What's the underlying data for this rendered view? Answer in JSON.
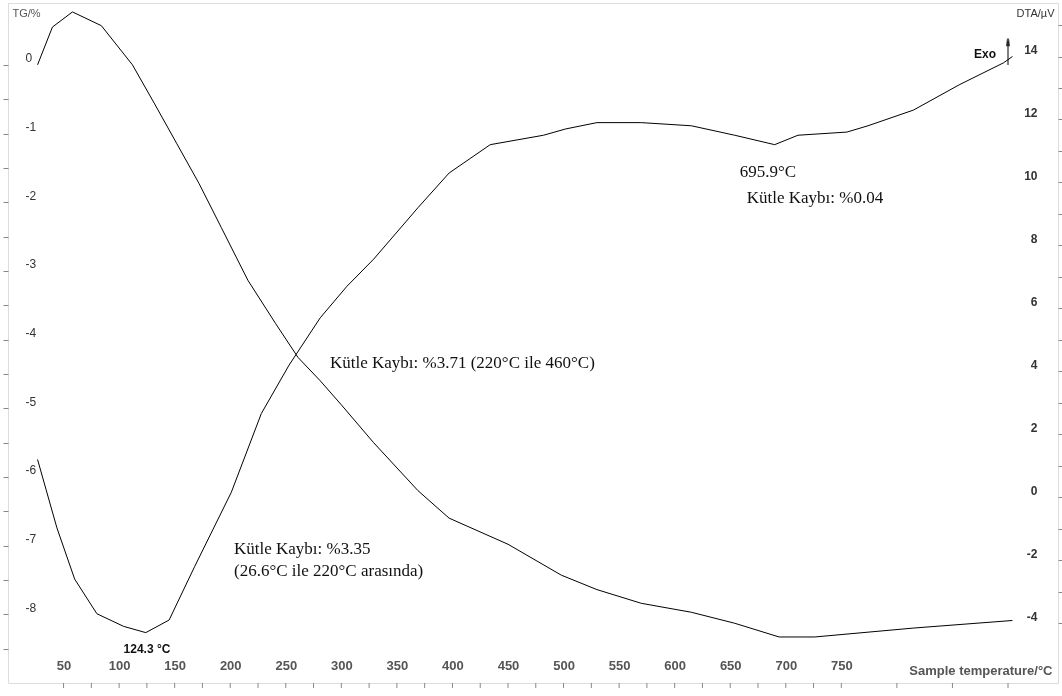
{
  "chart_data": {
    "type": "line",
    "xlabel": "Sample temperature/°C",
    "ylabel": "TG/%",
    "y2label": "DTA/µV",
    "xlim": [
      0,
      945
    ],
    "ylim": [
      -9,
      0.9
    ],
    "y2lim": [
      -5.9,
      15.7
    ],
    "xticks": [
      50,
      {
        "value": 75,
        "label": null
      },
      100,
      {
        "value": 125,
        "label": null
      },
      150,
      {
        "value": 175,
        "label": null
      },
      200,
      {
        "value": 225,
        "label": null
      },
      250,
      {
        "value": 275,
        "label": null
      },
      300,
      {
        "value": 325,
        "label": null
      },
      350,
      {
        "value": 375,
        "label": null
      },
      400,
      {
        "value": 425,
        "label": null
      },
      450,
      {
        "value": 475,
        "label": null
      },
      500,
      {
        "value": 525,
        "label": null
      },
      550,
      {
        "value": 575,
        "label": null
      },
      600,
      {
        "value": 625,
        "label": null
      },
      650,
      {
        "value": 675,
        "label": null
      },
      700,
      {
        "value": 725,
        "label": null
      },
      750,
      {
        "value": 800,
        "label": null
      },
      {
        "value": 850,
        "label": null
      },
      {
        "value": 900,
        "label": null
      }
    ],
    "yticks": [
      0,
      {
        "value": -0.5,
        "label": null
      },
      -1,
      {
        "value": -1.5,
        "label": null
      },
      -2,
      {
        "value": -2.5,
        "label": null
      },
      -3,
      {
        "value": -3.5,
        "label": null
      },
      -4,
      {
        "value": -4.5,
        "label": null
      },
      -5,
      {
        "value": -5.5,
        "label": null
      },
      -6,
      {
        "value": -6.5,
        "label": null
      },
      -7,
      {
        "value": -7.5,
        "label": null
      },
      -8,
      {
        "value": -8.5,
        "label": null
      }
    ],
    "y2ticks": [
      -4,
      {
        "value": -3,
        "label": null
      },
      -2,
      {
        "value": -1,
        "label": null
      },
      0,
      {
        "value": 1,
        "label": null
      },
      2,
      {
        "value": 3,
        "label": null
      },
      4,
      {
        "value": 5,
        "label": null
      },
      6,
      {
        "value": 7,
        "label": null
      },
      8,
      {
        "value": 9,
        "label": null
      },
      10,
      {
        "value": 11,
        "label": null
      },
      12,
      {
        "value": 13,
        "label": null
      },
      14,
      {
        "value": 15,
        "label": null
      }
    ],
    "grid": false,
    "line_style": "solid",
    "marker": "none",
    "series": [
      {
        "color": "#000000",
        "x": [
          26.6,
          40,
          58,
          84,
          112,
          132,
          152,
          172,
          192,
          216,
          241,
          261,
          281,
          300,
          329,
          369,
          397,
          450,
          498,
          530,
          570,
          615,
          654,
          694,
          726,
          815,
          904
        ],
        "values": [
          0,
          0.55,
          0.77,
          0.57,
          0,
          -0.57,
          -1.15,
          -1.73,
          -2.37,
          -3.14,
          -3.77,
          -4.26,
          -4.6,
          -4.95,
          -5.5,
          -6.2,
          -6.6,
          -6.98,
          -7.43,
          -7.64,
          -7.84,
          -7.97,
          -8.13,
          -8.33,
          -8.33,
          -8.2,
          -8.09
        ]
      },
      {
        "color": "#000000",
        "axis": "y2",
        "x": [
          26.6,
          44,
          60,
          80,
          104,
          124,
          145,
          168,
          201,
          228,
          253,
          281,
          305,
          329,
          369,
          397,
          434,
          482,
          502,
          530,
          570,
          615,
          654,
          690,
          711,
          755,
          774,
          815,
          856,
          896,
          904
        ],
        "values": [
          1.2,
          -0.97,
          -2.6,
          -3.7,
          -4.1,
          -4.3,
          -3.9,
          -2.2,
          0.16,
          2.66,
          4.2,
          5.7,
          6.7,
          7.56,
          9.2,
          10.3,
          11.2,
          11.5,
          11.7,
          11.9,
          11.9,
          11.8,
          11.5,
          11.2,
          11.5,
          11.6,
          11.8,
          12.3,
          13.1,
          13.8,
          14.0
        ]
      }
    ],
    "annotations": [
      "124.3 °C",
      "695.9°C",
      "Kütle Kaybı: %0.04",
      "Kütle Kaybı: %3.71 (220°C ile 460°C)",
      "Kütle Kaybı: %3.35\n(26.6°C ile 220°C arasında)",
      "Exo"
    ]
  }
}
